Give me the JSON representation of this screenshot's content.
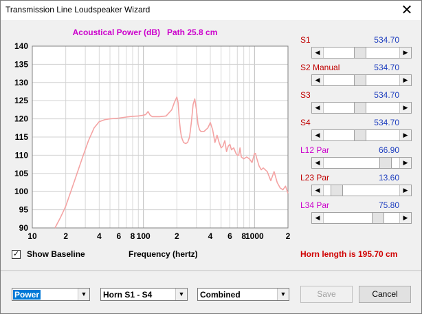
{
  "window": {
    "title": "Transmission Line Loudspeaker Wizard",
    "close_glyph": "✕"
  },
  "chart_header": {
    "left": "Acoustical Power (dB)",
    "right": "Path 25.8 cm",
    "color": "#cc00cc"
  },
  "sliders": [
    {
      "label": "S1",
      "value": "534.70",
      "label_color": "#c00000",
      "value_color": "#1f3fbf",
      "position": 0.48
    },
    {
      "label": "S2  Manual",
      "value": "534.70",
      "label_color": "#c00000",
      "value_color": "#1f3fbf",
      "position": 0.48
    },
    {
      "label": "S3",
      "value": "534.70",
      "label_color": "#c00000",
      "value_color": "#1f3fbf",
      "position": 0.48
    },
    {
      "label": "S4",
      "value": "534.70",
      "label_color": "#c00000",
      "value_color": "#1f3fbf",
      "position": 0.48
    },
    {
      "label": "L12  Par",
      "value": "66.90",
      "label_color": "#cc00cc",
      "value_color": "#1f3fbf",
      "position": 0.87
    },
    {
      "label": "L23  Par",
      "value": "13.60",
      "label_color": "#c00000",
      "value_color": "#1f3fbf",
      "position": 0.12
    },
    {
      "label": "L34  Par",
      "value": "75.80",
      "label_color": "#cc00cc",
      "value_color": "#1f3fbf",
      "position": 0.76
    }
  ],
  "options": {
    "show_baseline_label": "Show Baseline",
    "show_baseline_checked": true,
    "check_glyph": "✓"
  },
  "frequency_label": "Frequency (hertz)",
  "horn_length": "Horn length is 195.70 cm",
  "bottom": {
    "combo1": "Power",
    "combo2": "Horn S1 - S4",
    "combo3": "Combined",
    "save": "Save",
    "cancel": "Cancel",
    "dropdown_glyph": "▼",
    "arrow_left": "◀",
    "arrow_right": "▶"
  },
  "chart_data": {
    "type": "line",
    "title": "Acoustical Power (dB)   Path 25.8 cm",
    "xlabel": "Frequency (hertz)",
    "ylabel": "",
    "xscale": "log",
    "xlim": [
      10,
      2000
    ],
    "ylim": [
      90,
      140
    ],
    "grid": true,
    "yticks": [
      90,
      95,
      100,
      105,
      110,
      115,
      120,
      125,
      130,
      135,
      140
    ],
    "xtick_labels": [
      {
        "x": 10,
        "label": "10"
      },
      {
        "x": 20,
        "label": "2"
      },
      {
        "x": 40,
        "label": "4"
      },
      {
        "x": 60,
        "label": "6"
      },
      {
        "x": 80,
        "label": "8"
      },
      {
        "x": 100,
        "label": "100"
      },
      {
        "x": 200,
        "label": "2"
      },
      {
        "x": 400,
        "label": "4"
      },
      {
        "x": 600,
        "label": "6"
      },
      {
        "x": 800,
        "label": "8"
      },
      {
        "x": 1000,
        "label": "1000"
      },
      {
        "x": 2000,
        "label": "2"
      }
    ],
    "series": [
      {
        "color": "#f4a3a3",
        "x": [
          16,
          18,
          20,
          24,
          28,
          32,
          36,
          40,
          45,
          50,
          60,
          70,
          80,
          90,
          100,
          105,
          110,
          115,
          120,
          140,
          160,
          180,
          190,
          200,
          205,
          210,
          215,
          220,
          230,
          240,
          250,
          260,
          270,
          280,
          290,
          300,
          310,
          320,
          330,
          350,
          380,
          400,
          420,
          440,
          460,
          480,
          500,
          520,
          540,
          560,
          580,
          600,
          620,
          650,
          680,
          700,
          720,
          740,
          760,
          800,
          850,
          900,
          950,
          1000,
          1020,
          1050,
          1100,
          1150,
          1200,
          1300,
          1400,
          1500,
          1600,
          1700,
          1800,
          1900,
          2000
        ],
        "y": [
          90,
          93,
          96,
          103,
          109,
          114,
          117.5,
          119.2,
          119.8,
          120.0,
          120.2,
          120.5,
          120.7,
          120.8,
          121.0,
          121.2,
          122.0,
          121.0,
          120.6,
          120.6,
          120.8,
          122.5,
          124.5,
          126.0,
          124.5,
          120.0,
          117.0,
          115.0,
          113.5,
          113.2,
          113.5,
          115.0,
          119.0,
          124.0,
          125.5,
          122.5,
          118.5,
          117.0,
          116.5,
          116.5,
          117.5,
          119.0,
          117.0,
          113.5,
          115.5,
          113.5,
          112.0,
          112.5,
          114.0,
          111.0,
          112.5,
          113.0,
          111.5,
          112.0,
          110.5,
          110.0,
          110.0,
          112.0,
          109.5,
          109.0,
          109.5,
          109.0,
          108.0,
          110.5,
          110.5,
          109.0,
          107.0,
          106.0,
          106.5,
          105.5,
          103.0,
          105.5,
          102.5,
          101.0,
          100.5,
          101.5,
          99.5
        ]
      }
    ]
  }
}
